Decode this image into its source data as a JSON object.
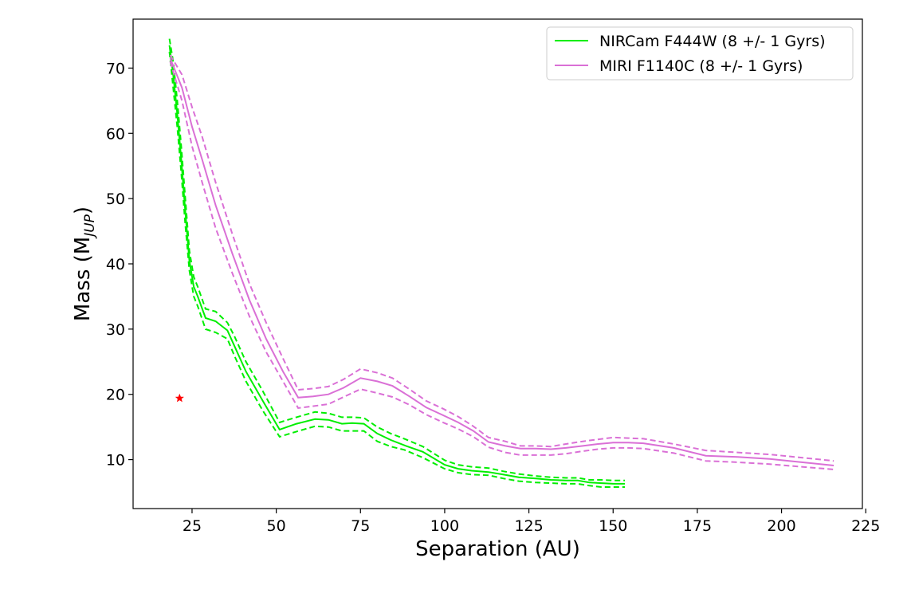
{
  "chart_data": {
    "type": "line",
    "xlabel": "Separation (AU)",
    "ylabel": "Mass (M",
    "ylabel_sub": "JUP",
    "ylabel_close": ")",
    "xlim": [
      7.5,
      224
    ],
    "ylim": [
      2.5,
      77.5
    ],
    "xticks": [
      25,
      50,
      75,
      100,
      125,
      150,
      175,
      200,
      225
    ],
    "yticks": [
      10,
      20,
      30,
      40,
      50,
      60,
      70
    ],
    "legend_position": "top-right",
    "grid": false,
    "series": [
      {
        "name": "NIRCam F444W (8 +/- 1 Gyrs)",
        "color": "#00ee00",
        "x": [
          18.3,
          19.4,
          20.6,
          21.8,
          23.0,
          24.2,
          25.5,
          26.7,
          29.0,
          32.0,
          35.5,
          37.5,
          41.0,
          46.0,
          51.0,
          56.0,
          61.5,
          65.5,
          69.5,
          72.5,
          76.0,
          80.0,
          84.0,
          88.0,
          93.5,
          100.0,
          104.0,
          108.0,
          113.0,
          117.5,
          122.0,
          127.0,
          131.5,
          136.0,
          139.5,
          143.0,
          146.5,
          150.0,
          153.5
        ],
        "y": [
          73.5,
          69.0,
          63.0,
          56.0,
          48.0,
          40.5,
          36.5,
          35.0,
          31.7,
          31.2,
          29.8,
          27.5,
          23.5,
          19.0,
          14.6,
          15.5,
          16.2,
          16.1,
          15.5,
          15.6,
          15.5,
          14.0,
          13.0,
          12.2,
          11.2,
          9.2,
          8.6,
          8.3,
          8.1,
          7.7,
          7.3,
          7.1,
          6.9,
          6.8,
          6.8,
          6.5,
          6.4,
          6.3,
          6.3
        ],
        "y_upper": [
          74.5,
          71.0,
          65.0,
          58.0,
          50.0,
          42.0,
          38.0,
          36.5,
          33.1,
          32.7,
          31.0,
          29.0,
          25.0,
          20.5,
          15.7,
          16.5,
          17.3,
          17.1,
          16.5,
          16.5,
          16.4,
          15.0,
          14.0,
          13.2,
          12.0,
          9.9,
          9.2,
          8.9,
          8.7,
          8.2,
          7.8,
          7.5,
          7.3,
          7.2,
          7.2,
          6.9,
          6.9,
          6.8,
          6.8
        ],
        "y_lower": [
          72.5,
          67.0,
          61.0,
          54.0,
          46.0,
          39.0,
          35.0,
          33.5,
          30.0,
          29.5,
          28.5,
          26.0,
          22.0,
          17.5,
          13.5,
          14.3,
          15.1,
          15.0,
          14.4,
          14.4,
          14.4,
          12.8,
          12.0,
          11.5,
          10.3,
          8.6,
          8.0,
          7.7,
          7.6,
          7.1,
          6.7,
          6.5,
          6.4,
          6.3,
          6.3,
          6.0,
          5.8,
          5.8,
          5.8
        ]
      },
      {
        "name": "MIRI F1140C (8 +/- 1 Gyrs)",
        "color": "#da70d6",
        "x": [
          18.5,
          22.0,
          25.0,
          28.0,
          32.0,
          37.0,
          42.0,
          47.0,
          52.0,
          56.5,
          61.0,
          65.5,
          70.0,
          75.0,
          80.0,
          84.5,
          89.5,
          94.5,
          99.5,
          104.0,
          108.5,
          113.0,
          118.0,
          122.5,
          127.0,
          131.5,
          136.0,
          141.0,
          145.5,
          150.0,
          154.5,
          159.0,
          168.0,
          177.5,
          187.0,
          196.5,
          206.0,
          215.5
        ],
        "y": [
          71.5,
          67.0,
          61.0,
          56.0,
          49.0,
          41.5,
          34.5,
          28.5,
          23.5,
          19.5,
          19.7,
          20.0,
          21.0,
          22.5,
          22.0,
          21.3,
          19.7,
          18.0,
          16.8,
          15.7,
          14.4,
          12.7,
          12.1,
          11.7,
          11.7,
          11.6,
          11.8,
          12.1,
          12.4,
          12.6,
          12.6,
          12.5,
          11.8,
          10.6,
          10.4,
          10.1,
          9.6,
          9.1
        ],
        "y_upper": [
          72.0,
          69.0,
          64.0,
          59.5,
          52.5,
          44.5,
          37.0,
          31.0,
          25.5,
          20.7,
          20.9,
          21.2,
          22.3,
          23.9,
          23.3,
          22.5,
          20.8,
          19.0,
          17.8,
          16.6,
          15.1,
          13.4,
          12.8,
          12.1,
          12.1,
          12.0,
          12.4,
          12.8,
          13.1,
          13.4,
          13.3,
          13.2,
          12.4,
          11.4,
          11.1,
          10.8,
          10.3,
          9.8
        ],
        "y_lower": [
          71.0,
          65.0,
          58.0,
          52.5,
          45.5,
          38.5,
          32.0,
          26.5,
          22.0,
          17.9,
          18.2,
          18.5,
          19.6,
          20.8,
          20.2,
          19.6,
          18.4,
          16.9,
          15.7,
          14.7,
          13.5,
          11.9,
          11.1,
          10.7,
          10.7,
          10.7,
          10.9,
          11.3,
          11.6,
          11.8,
          11.8,
          11.7,
          11.0,
          9.8,
          9.6,
          9.3,
          8.9,
          8.5
        ]
      }
    ],
    "marker": {
      "x": 21.3,
      "y": 19.4,
      "color": "#ff0000",
      "shape": "star"
    }
  }
}
